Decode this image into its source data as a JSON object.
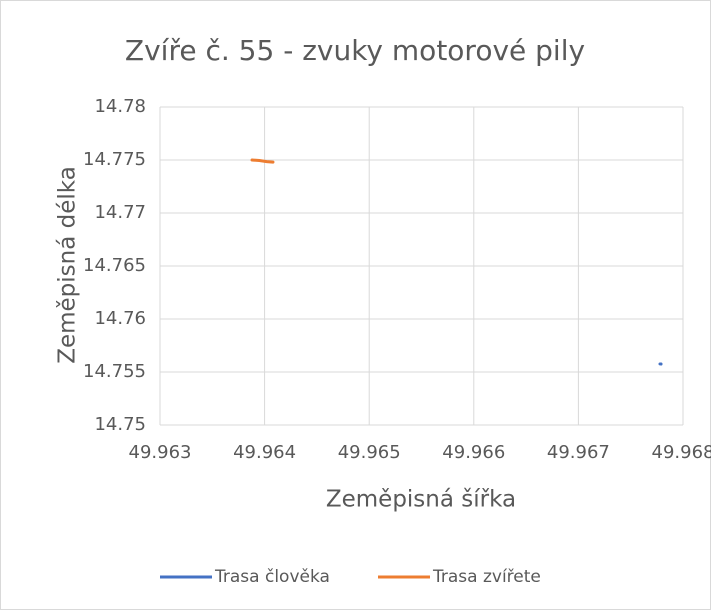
{
  "chart_data": {
    "type": "scatter",
    "title": "Zvíře č. 55 - zvuky motorové pily",
    "x_label": "Zeměpisná šířka",
    "y_label": "Zeměpisná délka",
    "series": [
      {
        "name": "Trasa člověka",
        "color": "#4472c4",
        "x": [
          49.96778,
          49.96779
        ],
        "values": [
          14.75576,
          14.75575
        ]
      },
      {
        "name": "Trasa zvířete",
        "color": "#ed7d31",
        "x": [
          49.96388,
          49.96395,
          49.96402,
          49.96408
        ],
        "values": [
          14.775,
          14.77495,
          14.77485,
          14.7748
        ]
      }
    ],
    "xlim": [
      49.963,
      49.968
    ],
    "xticks": [
      49.963,
      49.964,
      49.965,
      49.966,
      49.967,
      49.968
    ],
    "ylim": [
      14.75,
      14.78
    ],
    "yticks": [
      14.75,
      14.755,
      14.76,
      14.765,
      14.77,
      14.775,
      14.78
    ],
    "grid": true,
    "legend": "bottom"
  }
}
